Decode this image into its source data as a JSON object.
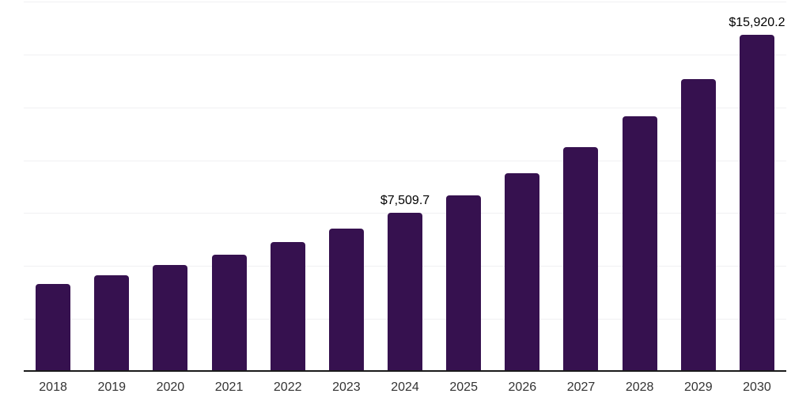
{
  "chart_data": {
    "type": "bar",
    "title": "",
    "xlabel": "",
    "ylabel": "",
    "categories": [
      "2018",
      "2019",
      "2020",
      "2021",
      "2022",
      "2023",
      "2024",
      "2025",
      "2026",
      "2027",
      "2028",
      "2029",
      "2030"
    ],
    "values": [
      4148.3,
      4559.5,
      5045.0,
      5530.6,
      6128.5,
      6763.9,
      7509.7,
      8333.6,
      9380.1,
      10613.3,
      12070.6,
      13827.1,
      15920.2
    ],
    "point_labels": [
      "",
      "",
      "",
      "",
      "",
      "",
      "$7,509.7",
      "",
      "",
      "",
      "",
      "",
      "$15,920.2"
    ],
    "ylim": [
      0,
      17500
    ],
    "gridline_step": 2500,
    "grid": true,
    "legend": "none",
    "y_axis_labels_visible": false,
    "bar_color": "#36114F",
    "value_label_color": "#000000",
    "tick_label_color": "#333333",
    "axis_line_color": "#1A1A1A",
    "gridline_color": "#F0F0F2",
    "background_color": "#FFFFFF"
  }
}
